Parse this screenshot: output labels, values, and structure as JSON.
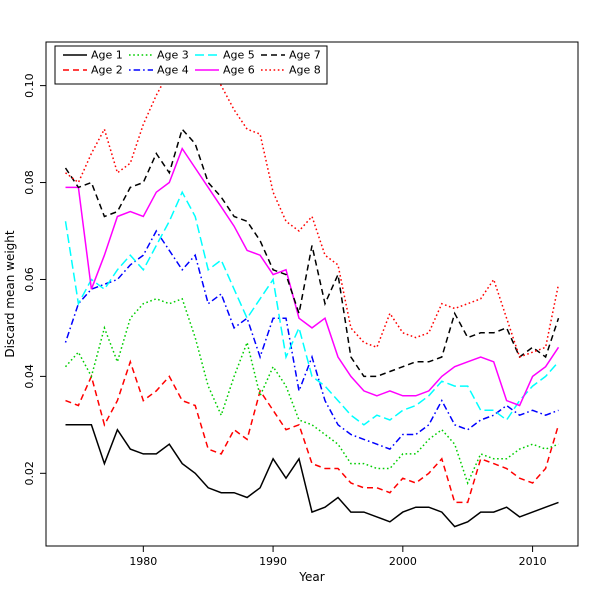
{
  "figure": {
    "background": "#ffffff"
  },
  "axes": {
    "xlabel": "Year",
    "ylabel": "Discard mean weight",
    "x_tick_labels": [
      "1980",
      "1990",
      "2000",
      "2010"
    ],
    "y_tick_labels": [
      "0.02",
      "0.04",
      "0.06",
      "0.08",
      "0.10"
    ]
  },
  "legend": {
    "position": "top-left",
    "ncol": 4,
    "labels": [
      "Age 1",
      "Age 2",
      "Age 3",
      "Age 4",
      "Age 5",
      "Age 6",
      "Age 7",
      "Age 8"
    ]
  },
  "chart_data": {
    "type": "line",
    "title": "",
    "xlabel": "Year",
    "ylabel": "Discard mean weight",
    "xlim": [
      1972.5,
      2013.5
    ],
    "ylim": [
      0.005,
      0.109
    ],
    "x_ticks": [
      1980,
      1990,
      2000,
      2010
    ],
    "x_tick_labels": [
      "1980",
      "1990",
      "2000",
      "2010"
    ],
    "y_ticks": [
      0.02,
      0.04,
      0.06,
      0.08,
      0.1
    ],
    "y_tick_labels": [
      "0.02",
      "0.04",
      "0.06",
      "0.08",
      "0.10"
    ],
    "grid": false,
    "legend_position": "top-left",
    "x": [
      1974,
      1975,
      1976,
      1977,
      1978,
      1979,
      1980,
      1981,
      1982,
      1983,
      1984,
      1985,
      1986,
      1987,
      1988,
      1989,
      1990,
      1991,
      1992,
      1993,
      1994,
      1995,
      1996,
      1997,
      1998,
      1999,
      2000,
      2001,
      2002,
      2003,
      2004,
      2005,
      2006,
      2007,
      2008,
      2009,
      2010,
      2011,
      2012
    ],
    "series": [
      {
        "name": "Age 1",
        "color": "#000000",
        "linestyle": "solid",
        "values": [
          0.03,
          0.03,
          0.03,
          0.022,
          0.029,
          0.025,
          0.024,
          0.024,
          0.026,
          0.022,
          0.02,
          0.017,
          0.016,
          0.016,
          0.015,
          0.017,
          0.023,
          0.019,
          0.023,
          0.012,
          0.013,
          0.015,
          0.012,
          0.012,
          0.011,
          0.01,
          0.012,
          0.013,
          0.013,
          0.012,
          0.009,
          0.01,
          0.012,
          0.012,
          0.013,
          0.011,
          0.012,
          0.013,
          0.014
        ]
      },
      {
        "name": "Age 2",
        "color": "#ff0000",
        "linestyle": "dashed",
        "values": [
          0.035,
          0.034,
          0.04,
          0.03,
          0.035,
          0.043,
          0.035,
          0.037,
          0.04,
          0.035,
          0.034,
          0.025,
          0.024,
          0.029,
          0.027,
          0.037,
          0.033,
          0.029,
          0.03,
          0.022,
          0.021,
          0.021,
          0.018,
          0.017,
          0.017,
          0.016,
          0.019,
          0.018,
          0.02,
          0.023,
          0.014,
          0.014,
          0.023,
          0.022,
          0.021,
          0.019,
          0.018,
          0.021,
          0.03
        ]
      },
      {
        "name": "Age 3",
        "color": "#00cd00",
        "linestyle": "dotted",
        "values": [
          0.042,
          0.045,
          0.04,
          0.05,
          0.043,
          0.052,
          0.055,
          0.056,
          0.055,
          0.056,
          0.048,
          0.038,
          0.032,
          0.04,
          0.047,
          0.036,
          0.042,
          0.038,
          0.031,
          0.03,
          0.028,
          0.026,
          0.022,
          0.022,
          0.021,
          0.021,
          0.024,
          0.024,
          0.027,
          0.029,
          0.026,
          0.018,
          0.024,
          0.023,
          0.023,
          0.025,
          0.026,
          0.025,
          0.026
        ]
      },
      {
        "name": "Age 4",
        "color": "#0000ff",
        "linestyle": "dashdot",
        "values": [
          0.047,
          0.055,
          0.058,
          0.059,
          0.06,
          0.063,
          0.065,
          0.07,
          0.066,
          0.062,
          0.065,
          0.055,
          0.057,
          0.05,
          0.052,
          0.044,
          0.052,
          0.052,
          0.037,
          0.044,
          0.035,
          0.03,
          0.028,
          0.027,
          0.026,
          0.025,
          0.028,
          0.028,
          0.03,
          0.035,
          0.03,
          0.029,
          0.031,
          0.032,
          0.034,
          0.032,
          0.033,
          0.032,
          0.033
        ]
      },
      {
        "name": "Age 5",
        "color": "#00ffff",
        "linestyle": "longdash",
        "values": [
          0.072,
          0.055,
          0.06,
          0.058,
          0.062,
          0.065,
          0.062,
          0.067,
          0.072,
          0.078,
          0.073,
          0.062,
          0.064,
          0.058,
          0.052,
          0.056,
          0.06,
          0.044,
          0.05,
          0.04,
          0.038,
          0.035,
          0.032,
          0.03,
          0.032,
          0.031,
          0.033,
          0.034,
          0.036,
          0.039,
          0.038,
          0.038,
          0.033,
          0.033,
          0.031,
          0.035,
          0.038,
          0.04,
          0.043
        ]
      },
      {
        "name": "Age 6",
        "color": "#ff00ff",
        "linestyle": "solid",
        "values": [
          0.079,
          0.079,
          0.058,
          0.065,
          0.073,
          0.074,
          0.073,
          0.078,
          0.08,
          0.087,
          0.083,
          0.079,
          0.075,
          0.071,
          0.066,
          0.065,
          0.061,
          0.062,
          0.052,
          0.05,
          0.052,
          0.044,
          0.04,
          0.037,
          0.036,
          0.037,
          0.036,
          0.036,
          0.037,
          0.04,
          0.042,
          0.043,
          0.044,
          0.043,
          0.035,
          0.034,
          0.04,
          0.042,
          0.046
        ]
      },
      {
        "name": "Age 7",
        "color": "#000000",
        "linestyle": "dashed",
        "values": [
          0.083,
          0.079,
          0.08,
          0.073,
          0.074,
          0.079,
          0.08,
          0.086,
          0.082,
          0.091,
          0.088,
          0.08,
          0.077,
          0.073,
          0.072,
          0.068,
          0.062,
          0.061,
          0.053,
          0.067,
          0.055,
          0.061,
          0.044,
          0.04,
          0.04,
          0.041,
          0.042,
          0.043,
          0.043,
          0.044,
          0.053,
          0.048,
          0.049,
          0.049,
          0.05,
          0.044,
          0.046,
          0.044,
          0.052
        ]
      },
      {
        "name": "Age 8",
        "color": "#ff0000",
        "linestyle": "dotted",
        "values": [
          0.082,
          0.08,
          0.086,
          0.091,
          0.082,
          0.084,
          0.092,
          0.098,
          0.103,
          0.105,
          0.105,
          0.104,
          0.1,
          0.095,
          0.091,
          0.09,
          0.078,
          0.072,
          0.07,
          0.073,
          0.065,
          0.063,
          0.05,
          0.047,
          0.046,
          0.053,
          0.049,
          0.048,
          0.049,
          0.055,
          0.054,
          0.055,
          0.056,
          0.06,
          0.052,
          0.044,
          0.045,
          0.046,
          0.059
        ]
      }
    ]
  }
}
